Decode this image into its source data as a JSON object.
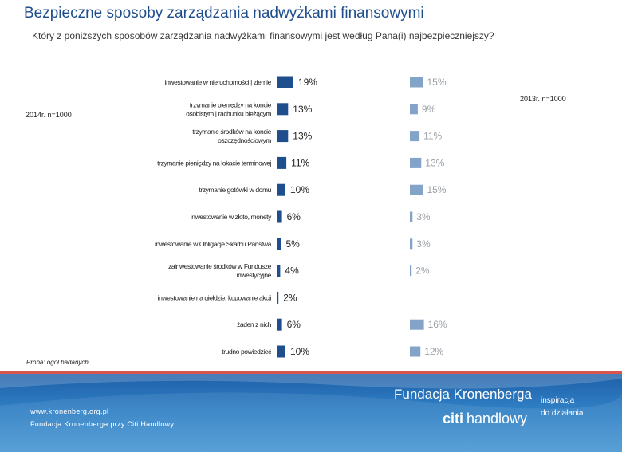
{
  "title": "Bezpieczne sposoby zarządzania nadwyżkami finansowymi",
  "subtitle": "Który z poniższych sposobów zarządzania nadwyżkami finansowymi jest według Pana(i) najbezpieczniejszy?",
  "label_2014": "2014r. n=1000",
  "label_2013": "2013r. n=1000",
  "source_note": "Próba: ogół badanych.",
  "footer": {
    "url": "www.kronenberg.org.pl",
    "org": "Fundacja Kronenberga przy Citi Handlowy",
    "brand": "Fundacja Kronenberga",
    "citi": "citi",
    "handlowy": "handlowy",
    "tagline1": "inspiracja",
    "tagline2": "do działania"
  },
  "colors": {
    "bar_2014": "#1f4e8c",
    "bar_2013": "#6f93bf",
    "footer": "#2f7fc4",
    "accent_line": "#d9534f"
  },
  "chart_data": {
    "type": "bar",
    "orientation": "horizontal",
    "categories": [
      [
        "inwestowanie w nieruchomości | ziemię"
      ],
      [
        "trzymanie pieniędzy na koncie",
        "osobistym | rachunku bieżącym"
      ],
      [
        "trzymanie środków na koncie",
        "oszczędnościowym"
      ],
      [
        "trzymanie pieniędzy na lokacie terminowej"
      ],
      [
        "trzymanie gotówki w domu"
      ],
      [
        "inwestowanie w złoto, monety"
      ],
      [
        "inwestowanie w Obligacje Skarbu Państwa"
      ],
      [
        "zainwestowanie środków w Fundusze",
        "inwestycyjne"
      ],
      [
        "inwestowanie na giełdzie, kupowanie akcji"
      ],
      [
        "żaden z nich"
      ],
      [
        "trudno powiedzieć"
      ]
    ],
    "series": [
      {
        "name": "2014r. n=1000",
        "values": [
          19,
          13,
          13,
          11,
          10,
          6,
          5,
          4,
          2,
          6,
          10
        ],
        "labels": [
          "19%",
          "13%",
          "13%",
          "11%",
          "10%",
          "6%",
          "5%",
          "4%",
          "2%",
          "6%",
          "10%"
        ]
      },
      {
        "name": "2013r. n=1000",
        "values": [
          15,
          9,
          11,
          13,
          15,
          3,
          3,
          2,
          null,
          16,
          12
        ],
        "labels": [
          "15%",
          "9%",
          "11%",
          "13%",
          "15%",
          "3%",
          "3%",
          "2%",
          "",
          "16%",
          "12%"
        ]
      }
    ]
  }
}
